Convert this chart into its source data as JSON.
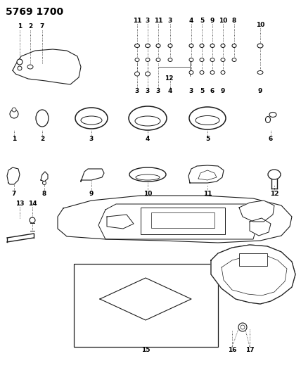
{
  "title": "5769 1700",
  "bg_color": "#ffffff",
  "line_color": "#1a1a1a",
  "title_fontsize": 10,
  "label_fontsize": 6.5,
  "fig_width": 4.28,
  "fig_height": 5.33,
  "dpi": 100
}
